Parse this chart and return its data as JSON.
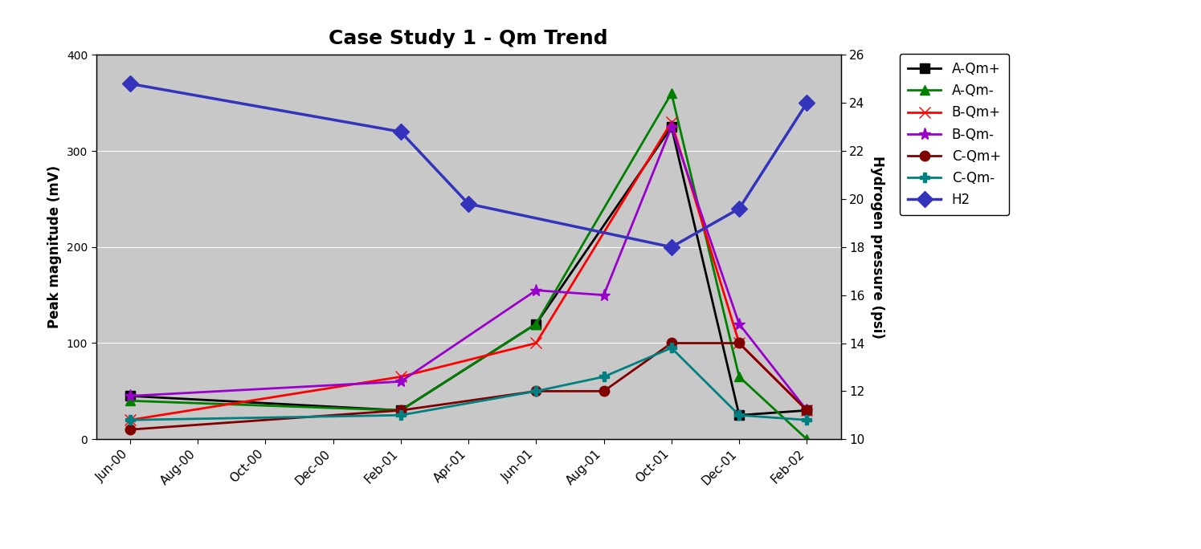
{
  "title": "Case Study 1 - Qm Trend",
  "ylabel_left": "Peak magnitude (mV)",
  "ylabel_right": "Hydrogen pressure (psi)",
  "x_labels": [
    "Jun-00",
    "Aug-00",
    "Oct-00",
    "Dec-00",
    "Feb-01",
    "Apr-01",
    "Jun-01",
    "Aug-01",
    "Oct-01",
    "Dec-01",
    "Feb-02"
  ],
  "ylim_left": [
    0,
    400
  ],
  "ylim_right": [
    10,
    26
  ],
  "yticks_left": [
    0,
    100,
    200,
    300,
    400
  ],
  "yticks_right": [
    10,
    12,
    14,
    16,
    18,
    20,
    22,
    24,
    26
  ],
  "series": [
    {
      "name": "A-Qm+",
      "color": "#000000",
      "marker": "s",
      "linewidth": 2,
      "markersize": 8,
      "is_h2": false,
      "values": [
        45,
        null,
        null,
        null,
        30,
        null,
        120,
        null,
        325,
        25,
        30
      ]
    },
    {
      "name": "A-Qm-",
      "color": "#008000",
      "marker": "^",
      "linewidth": 2,
      "markersize": 9,
      "is_h2": false,
      "values": [
        40,
        null,
        null,
        null,
        30,
        null,
        120,
        null,
        360,
        65,
        0
      ]
    },
    {
      "name": "B-Qm+",
      "color": "#ff0000",
      "marker": "x",
      "linewidth": 2,
      "markersize": 10,
      "is_h2": false,
      "values": [
        20,
        null,
        null,
        null,
        65,
        null,
        100,
        null,
        330,
        100,
        30
      ]
    },
    {
      "name": "B-Qm-",
      "color": "#9900cc",
      "marker": "*",
      "linewidth": 2,
      "markersize": 11,
      "is_h2": false,
      "values": [
        45,
        null,
        null,
        null,
        60,
        null,
        155,
        150,
        325,
        120,
        30
      ]
    },
    {
      "name": "C-Qm+",
      "color": "#800000",
      "marker": "o",
      "linewidth": 2,
      "markersize": 9,
      "is_h2": false,
      "values": [
        10,
        null,
        null,
        null,
        30,
        null,
        50,
        50,
        100,
        100,
        30
      ]
    },
    {
      "name": "C-Qm-",
      "color": "#008080",
      "marker": "P",
      "linewidth": 2,
      "markersize": 8,
      "is_h2": false,
      "values": [
        20,
        null,
        null,
        null,
        25,
        null,
        50,
        65,
        95,
        25,
        20
      ]
    },
    {
      "name": "H2",
      "color": "#3333bb",
      "marker": "D",
      "linewidth": 2.5,
      "markersize": 10,
      "is_h2": true,
      "values": [
        370,
        null,
        null,
        null,
        320,
        245,
        null,
        null,
        200,
        240,
        350
      ]
    }
  ],
  "background_color": "#c8c8c8",
  "outer_background": "#ffffff",
  "border_color": "#000000",
  "title_fontsize": 18,
  "axis_label_fontsize": 12,
  "tick_fontsize": 11,
  "legend_fontsize": 12
}
